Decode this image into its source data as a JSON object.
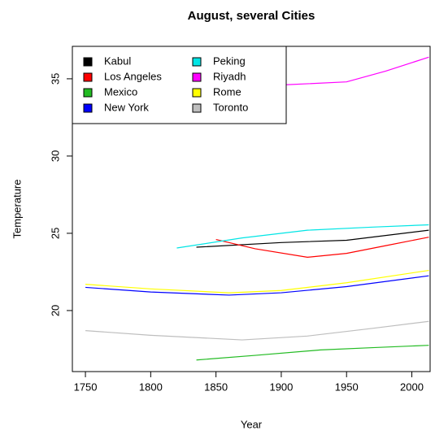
{
  "chart_data": {
    "type": "line",
    "title": "August, several Cities",
    "x_label": "Year",
    "y_label": "Temperature",
    "xlim": [
      1740,
      2014
    ],
    "ylim": [
      16.05,
      37.1
    ],
    "xticks": [
      1750,
      1800,
      1850,
      1900,
      1950,
      2000
    ],
    "yticks": [
      20,
      25,
      30,
      35
    ],
    "legend": "top-left",
    "series": [
      {
        "name": "Kabul",
        "color": "#000000",
        "x": [
          1835,
          1900,
          1950,
          2013
        ],
        "values": [
          24.1,
          24.4,
          24.55,
          25.2
        ]
      },
      {
        "name": "Los Angeles",
        "color": "#ff0000",
        "x": [
          1850,
          1880,
          1920,
          1950,
          1980,
          2013
        ],
        "values": [
          24.6,
          24.0,
          23.45,
          23.7,
          24.2,
          24.75
        ]
      },
      {
        "name": "Mexico",
        "color": "#22bb22",
        "x": [
          1835,
          1880,
          1930,
          1970,
          2013
        ],
        "values": [
          16.8,
          17.1,
          17.45,
          17.6,
          17.75
        ]
      },
      {
        "name": "New York",
        "color": "#0000ff",
        "x": [
          1750,
          1800,
          1860,
          1900,
          1950,
          2013
        ],
        "values": [
          21.5,
          21.2,
          21.0,
          21.15,
          21.55,
          22.25
        ]
      },
      {
        "name": "Peking",
        "color": "#00e5e5",
        "x": [
          1820,
          1870,
          1920,
          1970,
          2013
        ],
        "values": [
          24.05,
          24.7,
          25.2,
          25.4,
          25.55
        ]
      },
      {
        "name": "Riyadh",
        "color": "#ff00ff",
        "x": [
          1900,
          1950,
          1980,
          2013
        ],
        "values": [
          34.6,
          34.8,
          35.5,
          36.4
        ]
      },
      {
        "name": "Rome",
        "color": "#ffff00",
        "x": [
          1750,
          1800,
          1860,
          1900,
          1950,
          2013
        ],
        "values": [
          21.7,
          21.4,
          21.15,
          21.3,
          21.8,
          22.6
        ]
      },
      {
        "name": "Toronto",
        "color": "#bebebe",
        "x": [
          1750,
          1800,
          1870,
          1920,
          1970,
          2013
        ],
        "values": [
          18.7,
          18.4,
          18.1,
          18.35,
          18.85,
          19.3
        ]
      }
    ]
  }
}
